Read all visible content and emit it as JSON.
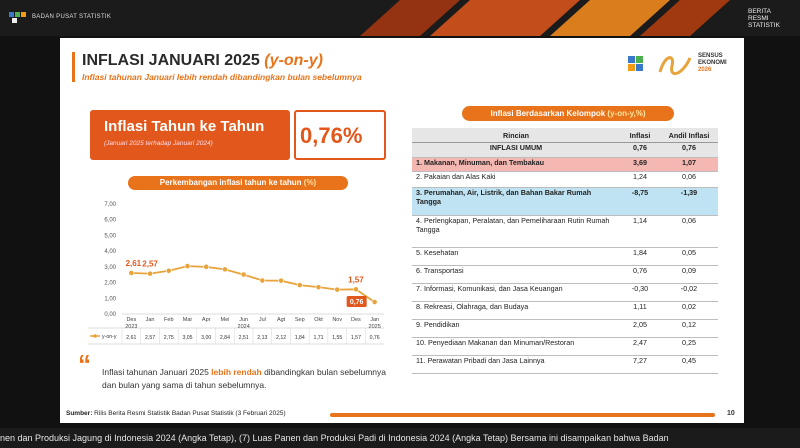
{
  "topbar": {
    "org": "BADAN PUSAT STATISTIK",
    "right_label": [
      "BERITA",
      "RESMI",
      "STATISTIK"
    ]
  },
  "slide": {
    "title_main": "INFLASI JANUARI 2025 ",
    "title_yoy": "(y-on-y)",
    "subtitle": "Inflasi tahunan Januari lebih rendah dibandingkan bulan sebelumnya",
    "sensus": [
      "SENSUS",
      "EKONOMI",
      "2026"
    ],
    "headline": {
      "title": "Inflasi Tahun ke Tahun",
      "sub": "(Januari 2025 terhadap Januari 2024)",
      "value": "0,76%"
    },
    "chart_title": "Perkembangan inflasi tahun ke tahun ",
    "chart_title_unit": "(%)",
    "quote_pre": "Inflasi tahunan Januari 2025 ",
    "quote_hl": "lebih rendah",
    "quote_post": " dibandingkan bulan sebelumnya dan bulan yang sama di tahun sebelumnya.",
    "source_label": "Sumber:",
    "source_text": " Rilis Berita Resmi Statistik Badan Pusat Statistik (3 Februari 2025)",
    "page_number": "10"
  },
  "chart_data": {
    "type": "line",
    "categories": [
      "Des 2023",
      "Jan",
      "Feb",
      "Mar",
      "Apr",
      "Mei",
      "Jun 2024",
      "Jul",
      "Agt",
      "Sep",
      "Okt",
      "Nov",
      "Des",
      "Jan 2025"
    ],
    "x_labels_top": [
      "Des",
      "Jan",
      "Feb",
      "Mar",
      "Apr",
      "Mei",
      "Jun",
      "Jul",
      "Agt",
      "Sep",
      "Okt",
      "Nov",
      "Des",
      "Jan"
    ],
    "x_labels_bottom": [
      "2023",
      "",
      "",
      "",
      "",
      "",
      "2024",
      "",
      "",
      "",
      "",
      "",
      "",
      "2025"
    ],
    "series": [
      {
        "name": "y-on-y",
        "values": [
          2.61,
          2.57,
          2.75,
          3.05,
          3.0,
          2.84,
          2.51,
          2.13,
          2.12,
          1.84,
          1.71,
          1.55,
          1.57,
          0.76
        ],
        "display": [
          "2,61",
          "2,57",
          "2,75",
          "3,05",
          "3,00",
          "2,84",
          "2,51",
          "2,13",
          "2,12",
          "1,84",
          "1,71",
          "1,55",
          "1,57",
          "0,76"
        ]
      }
    ],
    "yticks": [
      "0,00",
      "1,00",
      "2,00",
      "3,00",
      "4,00",
      "5,00",
      "6,00",
      "7,00"
    ],
    "ylim": [
      0,
      7
    ],
    "annotations": [
      "2,61",
      "2,57",
      "1,57",
      "0,76"
    ],
    "color": "#e8a33a"
  },
  "table": {
    "title": "Inflasi Berdasarkan Kelompok ",
    "title_unit": "(y-on-y,%)",
    "headers": [
      "Rincian",
      "Inflasi",
      "Andil Inflasi"
    ],
    "rows": [
      {
        "name": "INFLASI UMUM",
        "inflasi": "0,76",
        "andil": "0,76"
      },
      {
        "name": "1.  Makanan, Minuman, dan Tembakau",
        "inflasi": "3,69",
        "andil": "1,07"
      },
      {
        "name": "2.  Pakaian dan Alas Kaki",
        "inflasi": "1,24",
        "andil": "0,06"
      },
      {
        "name": "3.  Perumahan, Air, Listrik, dan Bahan Bakar Rumah Tangga",
        "inflasi": "-8,75",
        "andil": "-1,39"
      },
      {
        "name": "4.  Perlengkapan, Peralatan, dan Pemeliharaan Rutin Rumah Tangga",
        "inflasi": "1,14",
        "andil": "0,06"
      },
      {
        "name": "5.  Kesehatan",
        "inflasi": "1,84",
        "andil": "0,05"
      },
      {
        "name": "6.  Transportasi",
        "inflasi": "0,76",
        "andil": "0,09"
      },
      {
        "name": "7.  Informasi, Komunikasi, dan Jasa Keuangan",
        "inflasi": "-0,30",
        "andil": "-0,02"
      },
      {
        "name": "8.  Rekreasi, Olahraga, dan Budaya",
        "inflasi": "1,11",
        "andil": "0,02"
      },
      {
        "name": "9.  Pendidikan",
        "inflasi": "2,05",
        "andil": "0,12"
      },
      {
        "name": "10. Penyediaan Makanan dan Minuman/Restoran",
        "inflasi": "2,47",
        "andil": "0,25"
      },
      {
        "name": "11. Perawatan Pribadi dan Jasa Lainnya",
        "inflasi": "7,27",
        "andil": "0,45"
      }
    ]
  },
  "ticker": {
    "text": "nen dan Produksi Jagung di Indonesia 2024 (Angka Tetap), (7) Luas Panen dan Produksi Padi di Indonesia 2024 (Angka Tetap) Bersama ini disampaikan bahwa Badan"
  },
  "colors": {
    "accent": "#e8731a",
    "headline_box": "#e2571b",
    "row_red": "#f5b7b1",
    "row_blue": "#bfe3f3"
  }
}
